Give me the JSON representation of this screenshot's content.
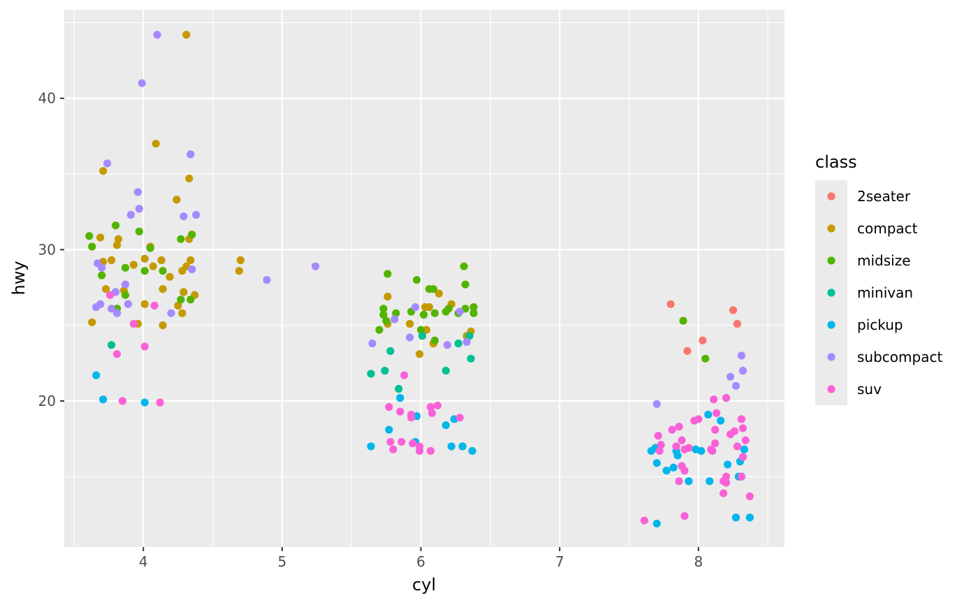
{
  "chart_data": {
    "type": "scatter",
    "xlabel": "cyl",
    "ylabel": "hwy",
    "xlim": [
      3.43,
      8.62
    ],
    "ylim": [
      10.35,
      45.85
    ],
    "x_ticks": [
      4,
      5,
      6,
      7,
      8
    ],
    "x_tick_labels": [
      "4",
      "5",
      "6",
      "7",
      "8"
    ],
    "y_ticks": [
      20,
      30,
      40
    ],
    "y_tick_labels": [
      "20",
      "30",
      "40"
    ],
    "grid": true,
    "legend": {
      "title": "class",
      "position": "right",
      "entries": [
        "2seater",
        "compact",
        "midsize",
        "minivan",
        "pickup",
        "subcompact",
        "suv"
      ]
    },
    "series": [
      {
        "name": "2seater",
        "color": "#F8766D",
        "points": [
          [
            7.8,
            26.4
          ],
          [
            8.25,
            26
          ],
          [
            8.28,
            25.1
          ],
          [
            8.03,
            24
          ],
          [
            7.92,
            23.3
          ]
        ]
      },
      {
        "name": "compact",
        "color": "#C49A00",
        "points": [
          [
            4.31,
            44.2
          ],
          [
            4.09,
            37
          ],
          [
            3.71,
            35.2
          ],
          [
            4.33,
            34.7
          ],
          [
            4.24,
            33.3
          ],
          [
            3.69,
            30.8
          ],
          [
            3.82,
            30.7
          ],
          [
            4.33,
            30.7
          ],
          [
            3.81,
            30.3
          ],
          [
            4.05,
            30.2
          ],
          [
            4.01,
            29.4
          ],
          [
            4.13,
            29.3
          ],
          [
            4.34,
            29.3
          ],
          [
            3.71,
            29.2
          ],
          [
            3.77,
            29.3
          ],
          [
            3.93,
            29
          ],
          [
            4.07,
            28.9
          ],
          [
            4.31,
            28.9
          ],
          [
            4.28,
            28.6
          ],
          [
            4.69,
            28.6
          ],
          [
            4.7,
            29.3
          ],
          [
            4.19,
            28.2
          ],
          [
            3.73,
            27.4
          ],
          [
            4.14,
            27.4
          ],
          [
            3.86,
            27.3
          ],
          [
            4.29,
            27.2
          ],
          [
            4.37,
            27
          ],
          [
            4.01,
            26.4
          ],
          [
            4.25,
            26.3
          ],
          [
            4.28,
            25.8
          ],
          [
            3.63,
            25.2
          ],
          [
            3.96,
            25.1
          ],
          [
            4.14,
            25
          ],
          [
            5.76,
            26.9
          ],
          [
            6.13,
            27.1
          ],
          [
            6.22,
            26.4
          ],
          [
            6.03,
            26.2
          ],
          [
            6.06,
            26.2
          ],
          [
            5.92,
            25.1
          ],
          [
            6.04,
            24.7
          ],
          [
            6.36,
            24.6
          ],
          [
            6.09,
            23.8
          ],
          [
            5.99,
            23.1
          ],
          [
            5.76,
            25.1
          ],
          [
            6.33,
            24.3
          ]
        ]
      },
      {
        "name": "midsize",
        "color": "#53B400",
        "points": [
          [
            3.61,
            30.9
          ],
          [
            3.8,
            31.6
          ],
          [
            3.97,
            31.2
          ],
          [
            4.35,
            31
          ],
          [
            4.27,
            30.7
          ],
          [
            3.63,
            30.2
          ],
          [
            4.05,
            30.1
          ],
          [
            3.87,
            28.8
          ],
          [
            4.14,
            28.6
          ],
          [
            4.01,
            28.6
          ],
          [
            3.7,
            28.3
          ],
          [
            4.27,
            26.7
          ],
          [
            4.34,
            26.7
          ],
          [
            3.87,
            27
          ],
          [
            3.81,
            26.1
          ],
          [
            5.76,
            28.4
          ],
          [
            5.97,
            28
          ],
          [
            6.31,
            28.9
          ],
          [
            6.32,
            27.7
          ],
          [
            6.06,
            27.4
          ],
          [
            6.09,
            27.4
          ],
          [
            5.73,
            26.1
          ],
          [
            5.73,
            25.7
          ],
          [
            5.82,
            25.8
          ],
          [
            5.93,
            25.9
          ],
          [
            6.02,
            25.7
          ],
          [
            6.1,
            25.8
          ],
          [
            6.18,
            25.9
          ],
          [
            6.27,
            25.8
          ],
          [
            6.32,
            26.1
          ],
          [
            6.38,
            26.2
          ],
          [
            6.38,
            25.8
          ],
          [
            6.2,
            26.1
          ],
          [
            5.7,
            24.7
          ],
          [
            6.0,
            24.7
          ],
          [
            6.1,
            24
          ],
          [
            5.75,
            25.3
          ],
          [
            7.89,
            25.3
          ],
          [
            8.05,
            22.8
          ]
        ]
      },
      {
        "name": "minivan",
        "color": "#00C094",
        "points": [
          [
            3.77,
            23.7
          ],
          [
            5.64,
            21.8
          ],
          [
            5.74,
            22
          ],
          [
            5.78,
            23.3
          ],
          [
            5.84,
            20.8
          ],
          [
            6.01,
            24.3
          ],
          [
            6.18,
            22
          ],
          [
            6.27,
            23.8
          ],
          [
            6.36,
            22.8
          ],
          [
            6.35,
            24.3
          ],
          [
            6.3,
            17
          ]
        ]
      },
      {
        "name": "pickup",
        "color": "#00B6EB",
        "points": [
          [
            3.66,
            21.7
          ],
          [
            3.71,
            20.1
          ],
          [
            4.01,
            19.9
          ],
          [
            5.64,
            17
          ],
          [
            5.77,
            18.1
          ],
          [
            5.85,
            20.2
          ],
          [
            5.97,
            19
          ],
          [
            5.96,
            17.3
          ],
          [
            6.18,
            18.4
          ],
          [
            6.24,
            18.8
          ],
          [
            6.22,
            17
          ],
          [
            6.3,
            17
          ],
          [
            6.37,
            16.7
          ],
          [
            7.66,
            16.7
          ],
          [
            7.69,
            16.9
          ],
          [
            7.7,
            15.9
          ],
          [
            7.77,
            15.4
          ],
          [
            7.82,
            15.6
          ],
          [
            7.84,
            16.7
          ],
          [
            7.85,
            16.4
          ],
          [
            7.93,
            14.7
          ],
          [
            7.98,
            16.8
          ],
          [
            8.02,
            16.7
          ],
          [
            8.07,
            19.1
          ],
          [
            8.08,
            14.7
          ],
          [
            8.16,
            18.7
          ],
          [
            8.21,
            15.8
          ],
          [
            8.27,
            12.3
          ],
          [
            8.29,
            15
          ],
          [
            8.3,
            16
          ],
          [
            8.33,
            16.8
          ],
          [
            8.37,
            12.3
          ],
          [
            7.7,
            11.9
          ],
          [
            8.31,
            15
          ]
        ]
      },
      {
        "name": "subcompact",
        "color": "#A58AFF",
        "points": [
          [
            4.1,
            44.2
          ],
          [
            3.99,
            41
          ],
          [
            3.74,
            35.7
          ],
          [
            4.34,
            36.3
          ],
          [
            3.96,
            33.8
          ],
          [
            3.97,
            32.7
          ],
          [
            3.91,
            32.3
          ],
          [
            4.38,
            32.3
          ],
          [
            4.29,
            32.2
          ],
          [
            4.89,
            28
          ],
          [
            5.24,
            28.9
          ],
          [
            3.67,
            29.1
          ],
          [
            3.7,
            28.8
          ],
          [
            4.35,
            28.7
          ],
          [
            3.87,
            27.7
          ],
          [
            3.8,
            27.2
          ],
          [
            3.77,
            26.1
          ],
          [
            3.89,
            26.4
          ],
          [
            3.69,
            26.4
          ],
          [
            3.66,
            26.2
          ],
          [
            4.2,
            25.8
          ],
          [
            3.81,
            25.8
          ],
          [
            5.65,
            23.8
          ],
          [
            5.81,
            25.4
          ],
          [
            5.92,
            24.2
          ],
          [
            5.96,
            26.2
          ],
          [
            6.19,
            23.7
          ],
          [
            6.28,
            25.9
          ],
          [
            6.33,
            23.9
          ],
          [
            7.7,
            19.8
          ],
          [
            8.23,
            21.6
          ],
          [
            8.27,
            21
          ],
          [
            8.31,
            23
          ],
          [
            8.32,
            22
          ]
        ]
      },
      {
        "name": "suv",
        "color": "#FB61D7",
        "points": [
          [
            3.76,
            27
          ],
          [
            4.08,
            26.3
          ],
          [
            3.93,
            25.1
          ],
          [
            3.81,
            23.1
          ],
          [
            4.01,
            23.6
          ],
          [
            3.85,
            20
          ],
          [
            4.12,
            19.9
          ],
          [
            5.88,
            21.7
          ],
          [
            5.77,
            19.6
          ],
          [
            5.85,
            19.3
          ],
          [
            5.93,
            19.1
          ],
          [
            5.93,
            18.9
          ],
          [
            6.07,
            19.6
          ],
          [
            6.12,
            19.7
          ],
          [
            6.08,
            19.2
          ],
          [
            6.28,
            18.9
          ],
          [
            5.78,
            17.3
          ],
          [
            5.86,
            17.3
          ],
          [
            5.94,
            17.2
          ],
          [
            5.99,
            17
          ],
          [
            5.8,
            16.8
          ],
          [
            5.99,
            16.7
          ],
          [
            6.07,
            16.7
          ],
          [
            7.61,
            12.1
          ],
          [
            7.9,
            12.4
          ],
          [
            7.71,
            17.7
          ],
          [
            7.73,
            17.1
          ],
          [
            7.72,
            16.7
          ],
          [
            7.81,
            18.1
          ],
          [
            7.86,
            18.3
          ],
          [
            7.88,
            17.4
          ],
          [
            7.84,
            17
          ],
          [
            7.9,
            16.8
          ],
          [
            7.93,
            16.9
          ],
          [
            7.88,
            15.7
          ],
          [
            7.9,
            15.4
          ],
          [
            7.86,
            14.7
          ],
          [
            7.97,
            18.7
          ],
          [
            8.0,
            18.8
          ],
          [
            8.11,
            20.1
          ],
          [
            8.2,
            20.2
          ],
          [
            8.13,
            19.2
          ],
          [
            8.12,
            18.1
          ],
          [
            8.12,
            17.2
          ],
          [
            8.09,
            16.8
          ],
          [
            8.1,
            16.7
          ],
          [
            8.23,
            17.8
          ],
          [
            8.26,
            18
          ],
          [
            8.28,
            17
          ],
          [
            8.31,
            18.8
          ],
          [
            8.32,
            18.2
          ],
          [
            8.34,
            17.4
          ],
          [
            8.32,
            16.3
          ],
          [
            8.2,
            15
          ],
          [
            8.18,
            14.7
          ],
          [
            8.2,
            14.6
          ],
          [
            8.18,
            13.9
          ],
          [
            8.31,
            15
          ],
          [
            8.37,
            13.7
          ]
        ]
      }
    ]
  }
}
